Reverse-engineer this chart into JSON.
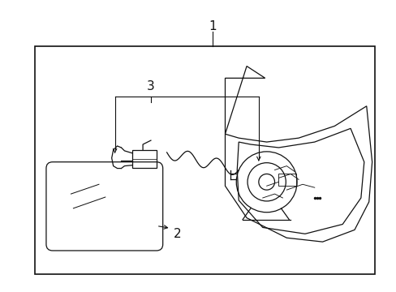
{
  "background_color": "#ffffff",
  "border_color": "#000000",
  "line_color": "#111111",
  "label1": "1",
  "label2": "2",
  "label3": "3",
  "fig_width": 4.89,
  "fig_height": 3.6,
  "dpi": 100
}
